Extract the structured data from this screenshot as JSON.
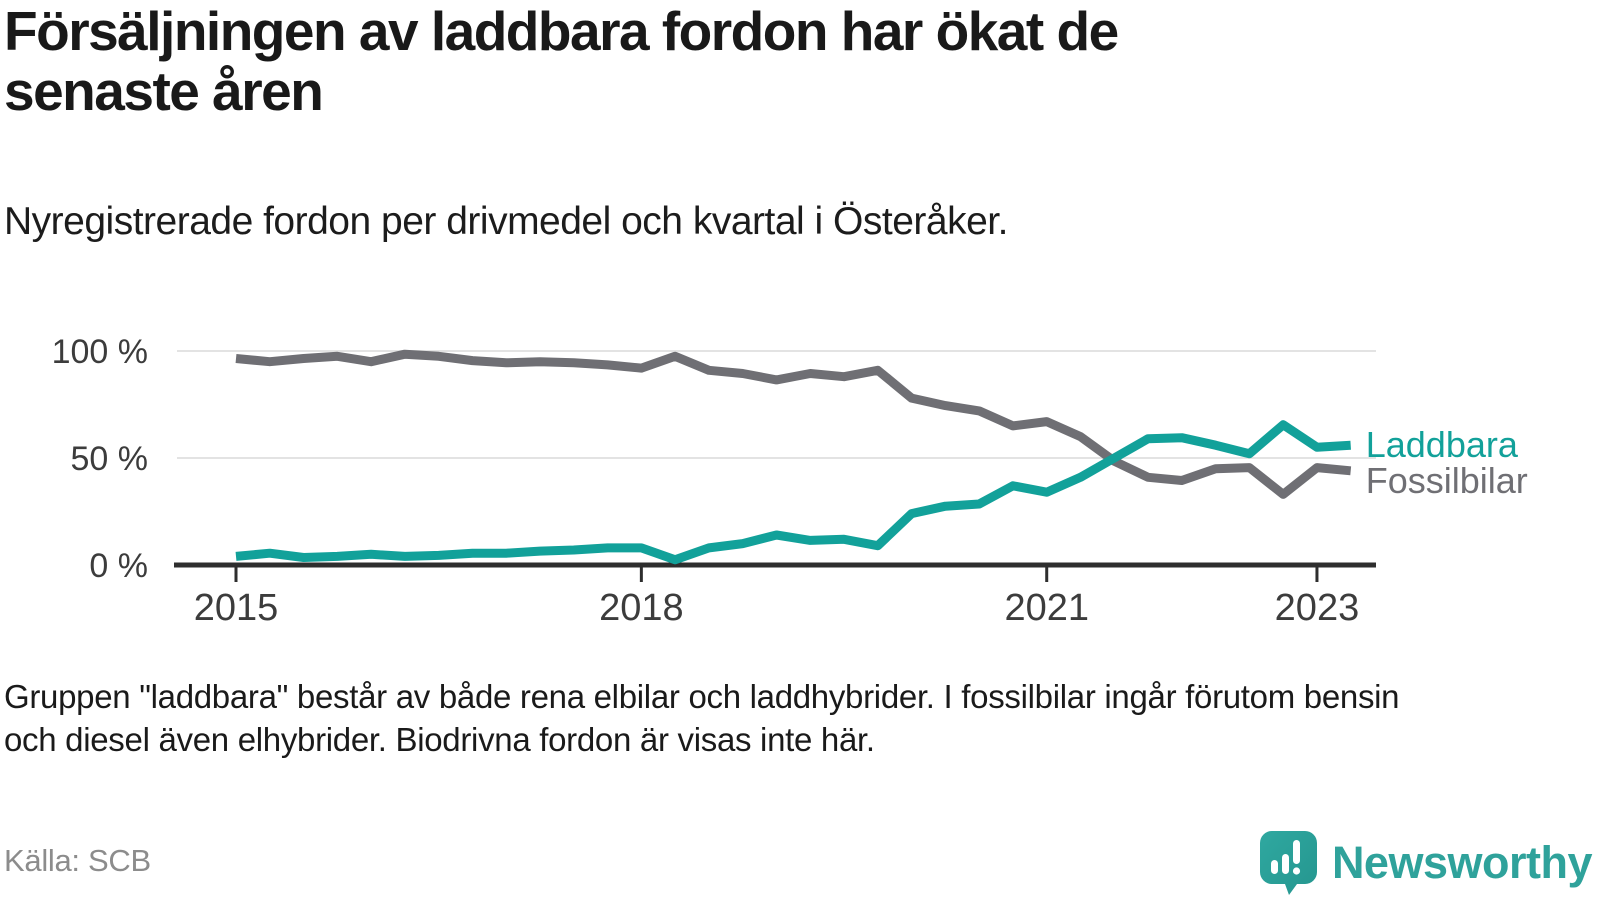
{
  "header": {
    "title_lines": [
      "Försäljningen av laddbara fordon har ökat de",
      "senaste åren"
    ],
    "subtitle": "Nyregistrerade fordon per drivmedel och kvartal i Österåker."
  },
  "chart_data": {
    "type": "line",
    "title": "Nyregistrerade fordon per drivmedel och kvartal i Österåker",
    "unit": "%",
    "ylim": [
      0,
      100
    ],
    "grid": "horizontal-only",
    "legend_position": "end-of-line-labels",
    "y_ticks": [
      {
        "label": "100 %",
        "value": 100
      },
      {
        "label": "50 %",
        "value": 50
      },
      {
        "label": "0 %",
        "value": 0
      }
    ],
    "x_ticks": [
      {
        "label": "2015",
        "category": "2015 Q1"
      },
      {
        "label": "2018",
        "category": "2018 Q1"
      },
      {
        "label": "2021",
        "category": "2021 Q1"
      },
      {
        "label": "2023",
        "category": "2023 Q1"
      }
    ],
    "categories": [
      "2015 Q1",
      "2015 Q2",
      "2015 Q3",
      "2015 Q4",
      "2016 Q1",
      "2016 Q2",
      "2016 Q3",
      "2016 Q4",
      "2017 Q1",
      "2017 Q2",
      "2017 Q3",
      "2017 Q4",
      "2018 Q1",
      "2018 Q2",
      "2018 Q3",
      "2018 Q4",
      "2019 Q1",
      "2019 Q2",
      "2019 Q3",
      "2019 Q4",
      "2020 Q1",
      "2020 Q2",
      "2020 Q3",
      "2020 Q4",
      "2021 Q1",
      "2021 Q2",
      "2021 Q3",
      "2021 Q4",
      "2022 Q1",
      "2022 Q2",
      "2022 Q3",
      "2022 Q4",
      "2023 Q1",
      "2023 Q2"
    ],
    "series": [
      {
        "name": "Laddbara",
        "color": "#12a19a",
        "values": [
          4,
          5.5,
          3.5,
          4,
          5,
          4,
          4.5,
          5.5,
          5.5,
          6.5,
          7,
          8,
          8,
          2.5,
          8,
          10,
          14,
          11.5,
          12,
          9,
          24,
          27.5,
          28.5,
          37,
          34,
          41,
          50,
          59,
          59.5,
          56,
          52,
          65.5,
          55,
          56
        ]
      },
      {
        "name": "Fossilbilar",
        "color": "#6f6f74",
        "values": [
          96.5,
          95,
          96.5,
          97.5,
          95,
          98.5,
          97.5,
          95.5,
          94.5,
          95,
          94.5,
          93.5,
          92,
          97.5,
          91,
          89.5,
          86.5,
          89.5,
          88,
          91,
          78,
          74.5,
          72,
          65,
          67,
          60,
          48.5,
          41,
          39.5,
          45,
          45.5,
          33,
          45.5,
          44
        ]
      }
    ],
    "colors": {
      "grid": "#e3e3e3",
      "axis": "#2e2e2e",
      "tick_label": "#3c3c3c"
    }
  },
  "footnote": {
    "lines": [
      "Gruppen \"laddbara\" består av både rena elbilar och laddhybrider. I fossilbilar ingår förutom bensin",
      "och diesel även elhybrider. Biodrivna fordon är visas inte här."
    ]
  },
  "source": {
    "label": "Källa: SCB"
  },
  "branding": {
    "name": "Newsworthy",
    "logo_color": "#2fa29b"
  }
}
